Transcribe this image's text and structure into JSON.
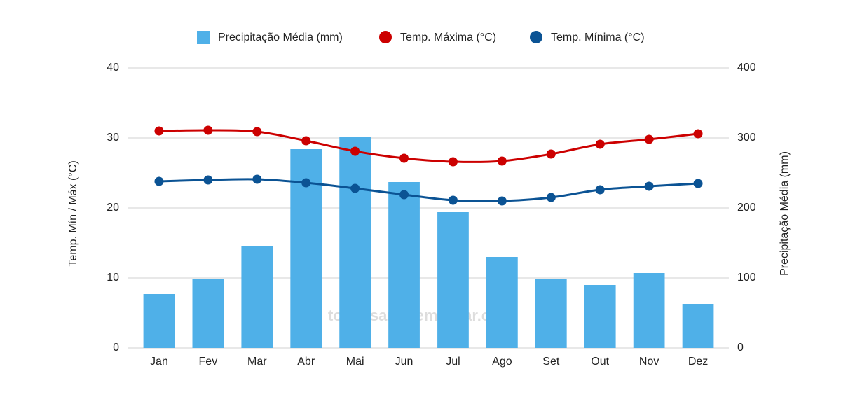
{
  "chart_data": {
    "type": "bar-line",
    "categories": [
      "Jan",
      "Fev",
      "Mar",
      "Abr",
      "Mai",
      "Jun",
      "Jul",
      "Ago",
      "Set",
      "Out",
      "Nov",
      "Dez"
    ],
    "y_label": "Temp. Mín / Máx (°C)",
    "y2_label": "Precipitação Média (mm)",
    "annotation": "topensandoemviajar.com",
    "ylim": [
      0,
      40
    ],
    "yticks": [
      0,
      10,
      20,
      30,
      40
    ],
    "y2lim": [
      0,
      400
    ],
    "y2ticks": [
      0,
      100,
      200,
      300,
      400
    ],
    "grid": true,
    "legend": "top",
    "series": [
      {
        "name": "Precipitação Média (mm)",
        "type": "bar",
        "axis": "y2",
        "color": "#4fb0e8",
        "values": [
          77,
          98,
          146,
          284,
          301,
          237,
          194,
          130,
          98,
          90,
          107,
          63
        ]
      },
      {
        "name": "Temp. Máxima (°C)",
        "type": "line",
        "color": "#cc0000",
        "values": [
          31.0,
          31.1,
          30.9,
          29.6,
          28.1,
          27.1,
          26.6,
          26.7,
          27.7,
          29.1,
          29.8,
          30.6
        ]
      },
      {
        "name": "Temp. Mínima (°C)",
        "type": "line",
        "color": "#0b5394",
        "values": [
          23.8,
          24.0,
          24.1,
          23.6,
          22.8,
          21.9,
          21.1,
          21.0,
          21.5,
          22.6,
          23.1,
          23.5
        ]
      }
    ]
  }
}
